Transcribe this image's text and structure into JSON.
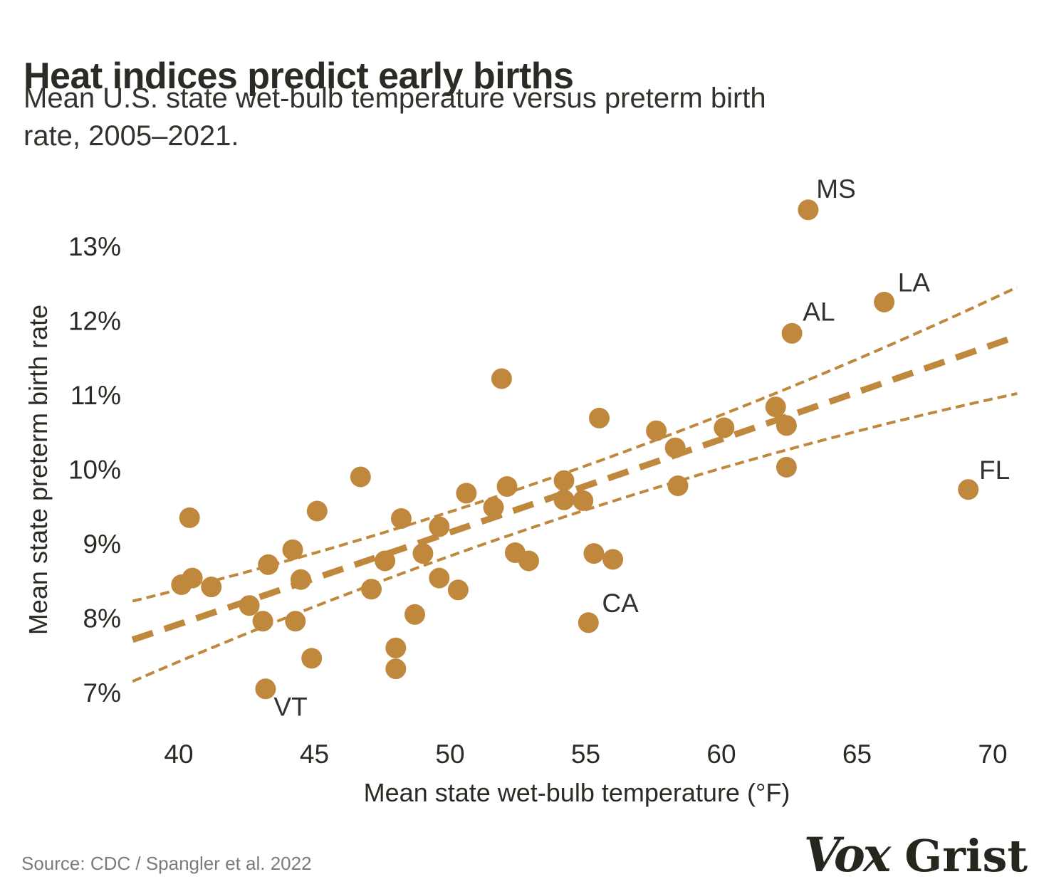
{
  "header": {
    "title": "Heat indices predict early births",
    "subtitle_line1": "Mean U.S. state wet-bulb temperature versus preterm birth",
    "subtitle_line2": "rate, 2005–2021."
  },
  "footer": {
    "source": "Source: CDC / Spangler et al. 2022",
    "vox_logo": "Vox",
    "grist_logo": "Grist"
  },
  "colors": {
    "accent": "#C0883C",
    "text": "#2B2B26",
    "source_gray": "#7B7B7B",
    "logo": "#26261F"
  },
  "chart_data": {
    "type": "scatter",
    "xlabel": "Mean state wet-bulb temperature (°F)",
    "ylabel": "Mean state preterm birth rate",
    "x_domain": [
      40,
      70
    ],
    "y_domain": [
      7,
      13
    ],
    "x_ticks": {
      "values": [
        40,
        45,
        50,
        55,
        60,
        65,
        70
      ],
      "labels": [
        "40",
        "45",
        "50",
        "55",
        "60",
        "65",
        "70"
      ]
    },
    "y_ticks": {
      "values": [
        13,
        12,
        11,
        10,
        9,
        8,
        7
      ],
      "labels": [
        "13%",
        "12%",
        "11%",
        "10%",
        "9%",
        "8%",
        "7%"
      ]
    },
    "grid": false,
    "legend": "none",
    "points": [
      {
        "x": 40.1,
        "y": 8.45
      },
      {
        "x": 40.4,
        "y": 9.35
      },
      {
        "x": 40.5,
        "y": 8.54
      },
      {
        "x": 41.2,
        "y": 8.42
      },
      {
        "x": 42.6,
        "y": 8.17
      },
      {
        "x": 43.1,
        "y": 7.96
      },
      {
        "x": 43.2,
        "y": 7.05,
        "label": "VT"
      },
      {
        "x": 43.3,
        "y": 8.72
      },
      {
        "x": 44.2,
        "y": 8.92
      },
      {
        "x": 44.3,
        "y": 7.96
      },
      {
        "x": 44.5,
        "y": 8.52
      },
      {
        "x": 44.9,
        "y": 7.46
      },
      {
        "x": 45.1,
        "y": 9.44
      },
      {
        "x": 46.7,
        "y": 9.9
      },
      {
        "x": 47.1,
        "y": 8.39
      },
      {
        "x": 47.6,
        "y": 8.77
      },
      {
        "x": 48.0,
        "y": 7.6
      },
      {
        "x": 48.0,
        "y": 7.32
      },
      {
        "x": 48.2,
        "y": 9.34
      },
      {
        "x": 48.7,
        "y": 8.05
      },
      {
        "x": 49.0,
        "y": 8.87
      },
      {
        "x": 49.6,
        "y": 9.23
      },
      {
        "x": 49.6,
        "y": 8.54
      },
      {
        "x": 50.3,
        "y": 8.38
      },
      {
        "x": 50.6,
        "y": 9.68
      },
      {
        "x": 51.6,
        "y": 9.49
      },
      {
        "x": 51.9,
        "y": 11.22
      },
      {
        "x": 52.1,
        "y": 9.77
      },
      {
        "x": 52.4,
        "y": 8.88
      },
      {
        "x": 52.9,
        "y": 8.77
      },
      {
        "x": 54.2,
        "y": 9.85
      },
      {
        "x": 54.2,
        "y": 9.59
      },
      {
        "x": 54.9,
        "y": 9.58
      },
      {
        "x": 55.1,
        "y": 7.94,
        "label": "CA"
      },
      {
        "x": 55.3,
        "y": 8.87
      },
      {
        "x": 55.5,
        "y": 10.69
      },
      {
        "x": 56.0,
        "y": 8.79
      },
      {
        "x": 57.6,
        "y": 10.52
      },
      {
        "x": 58.3,
        "y": 10.29
      },
      {
        "x": 58.4,
        "y": 9.78
      },
      {
        "x": 60.1,
        "y": 10.56
      },
      {
        "x": 62.0,
        "y": 10.84
      },
      {
        "x": 62.4,
        "y": 10.59
      },
      {
        "x": 62.4,
        "y": 10.03
      },
      {
        "x": 62.6,
        "y": 11.83,
        "label": "AL"
      },
      {
        "x": 63.2,
        "y": 13.49,
        "label": "MS"
      },
      {
        "x": 66.0,
        "y": 12.25,
        "label": "LA"
      },
      {
        "x": 69.1,
        "y": 9.73,
        "label": "FL"
      }
    ],
    "annotations": [
      {
        "text": "MS",
        "x": 63.5,
        "y": 13.65
      },
      {
        "text": "LA",
        "x": 66.5,
        "y": 12.39
      },
      {
        "text": "AL",
        "x": 63.0,
        "y": 12.0
      },
      {
        "text": "FL",
        "x": 69.5,
        "y": 9.87
      },
      {
        "text": "CA",
        "x": 55.6,
        "y": 8.08
      },
      {
        "text": "VT",
        "x": 43.5,
        "y": 6.69
      }
    ],
    "trend": {
      "center": {
        "anchors": [
          [
            38.3,
            7.71
          ],
          [
            54.7,
            9.74
          ],
          [
            70.9,
            11.79
          ]
        ],
        "style": "dashed-thick"
      },
      "upper_band": {
        "anchors": [
          [
            38.3,
            8.23
          ],
          [
            54.7,
            10.01
          ],
          [
            70.9,
            12.45
          ]
        ],
        "style": "dashed-thin"
      },
      "lower_band": {
        "anchors": [
          [
            38.3,
            7.15
          ],
          [
            54.7,
            9.42
          ],
          [
            70.9,
            11.02
          ]
        ],
        "style": "dashed-thin"
      }
    }
  }
}
